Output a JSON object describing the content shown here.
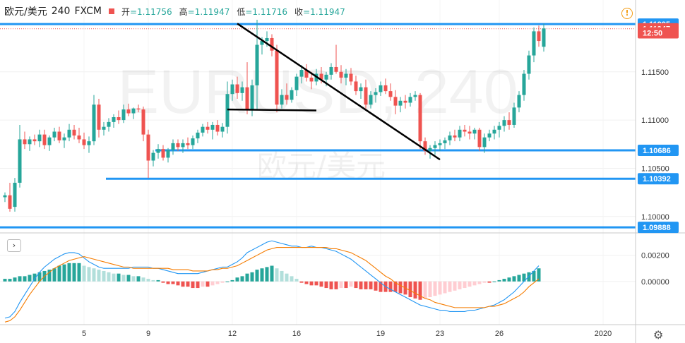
{
  "header": {
    "symbol": "欧元/美元",
    "interval": "240",
    "exchange": "FXCM",
    "open_label": "开",
    "open_value": "=1.11756",
    "high_label": "高",
    "high_value": "=1.11947",
    "low_label": "低",
    "low_value": "=1.11716",
    "close_label": "收",
    "close_value": "=1.11947"
  },
  "watermark": {
    "line1": "EURUSD, 240",
    "line2": "欧元/美元"
  },
  "icons": {
    "warning": "!",
    "collapse": "›",
    "settings": "⚙"
  },
  "colors": {
    "up": "#26a69a",
    "down": "#ef5350",
    "level": "#2196f3",
    "macd": "#2196f3",
    "signal": "#f57c00"
  },
  "chart_data": {
    "type": "candlestick",
    "price_axis": {
      "ylim": [
        1.0983,
        1.1204
      ],
      "ticks": [
        1.1,
        1.105,
        1.11,
        1.115
      ],
      "tick_labels": [
        "1.10000",
        "1.10500",
        "1.11000",
        "1.11500"
      ]
    },
    "x_axis": {
      "tick_labels": [
        "5",
        "9",
        "12",
        "16",
        "19",
        "23",
        "26",
        "2020"
      ]
    },
    "price_labels": [
      {
        "value": 1.11995,
        "text": "1.11995",
        "color": "#2196f3"
      },
      {
        "value": 1.11947,
        "text": "1.11947",
        "color": "#ef5350"
      },
      {
        "value": 1.11905,
        "text": "12:50",
        "color": "#ef5350"
      },
      {
        "value": 1.10686,
        "text": "1.10686",
        "color": "#2196f3"
      },
      {
        "value": 1.10392,
        "text": "1.10392",
        "color": "#2196f3"
      },
      {
        "value": 1.09888,
        "text": "1.09888",
        "color": "#2196f3"
      }
    ],
    "horizontal_lines": [
      {
        "value": 1.11995,
        "x_from": 0
      },
      {
        "value": 1.10686,
        "x_from": 31
      },
      {
        "value": 1.10392,
        "x_from": 21
      },
      {
        "value": 1.09888,
        "x_from": 0
      }
    ],
    "trend_lines": [
      {
        "from": [
          47,
          1.12
        ],
        "to": [
          88,
          1.1059
        ]
      },
      {
        "from": [
          45,
          1.1111
        ],
        "to": [
          63,
          1.111
        ]
      }
    ],
    "ohlc": [
      [
        1.102,
        1.1025,
        1.1015,
        1.1022
      ],
      [
        1.1022,
        1.1035,
        1.1005,
        1.1008
      ],
      [
        1.101,
        1.104,
        1.1005,
        1.1035
      ],
      [
        1.1035,
        1.1095,
        1.103,
        1.108
      ],
      [
        1.108,
        1.1088,
        1.107,
        1.1075
      ],
      [
        1.1075,
        1.1083,
        1.1068,
        1.108
      ],
      [
        1.108,
        1.1085,
        1.1074,
        1.1078
      ],
      [
        1.1078,
        1.109,
        1.1072,
        1.1085
      ],
      [
        1.1085,
        1.109,
        1.107,
        1.1074
      ],
      [
        1.1074,
        1.1084,
        1.1068,
        1.1082
      ],
      [
        1.1082,
        1.1092,
        1.1078,
        1.1088
      ],
      [
        1.1088,
        1.1093,
        1.1076,
        1.1079
      ],
      [
        1.1079,
        1.1086,
        1.1071,
        1.1082
      ],
      [
        1.1082,
        1.1096,
        1.1078,
        1.109
      ],
      [
        1.109,
        1.1095,
        1.108,
        1.1084
      ],
      [
        1.1084,
        1.1092,
        1.1076,
        1.108
      ],
      [
        1.108,
        1.1087,
        1.107,
        1.1074
      ],
      [
        1.1074,
        1.1083,
        1.1066,
        1.1078
      ],
      [
        1.1078,
        1.1126,
        1.1074,
        1.1116
      ],
      [
        1.1116,
        1.1122,
        1.1082,
        1.109
      ],
      [
        1.109,
        1.1098,
        1.1084,
        1.1093
      ],
      [
        1.1093,
        1.1102,
        1.1088,
        1.1098
      ],
      [
        1.1098,
        1.1106,
        1.1092,
        1.1103
      ],
      [
        1.1103,
        1.111,
        1.1096,
        1.11
      ],
      [
        1.11,
        1.1116,
        1.1097,
        1.1111
      ],
      [
        1.1111,
        1.1117,
        1.1104,
        1.1107
      ],
      [
        1.1107,
        1.1113,
        1.1101,
        1.1112
      ],
      [
        1.1112,
        1.1116,
        1.1108,
        1.1111
      ],
      [
        1.1111,
        1.1114,
        1.1078,
        1.1085
      ],
      [
        1.1085,
        1.109,
        1.104,
        1.1058
      ],
      [
        1.1058,
        1.1069,
        1.1052,
        1.1066
      ],
      [
        1.1066,
        1.1075,
        1.106,
        1.107
      ],
      [
        1.107,
        1.1074,
        1.1058,
        1.1061
      ],
      [
        1.1061,
        1.1071,
        1.1056,
        1.1069
      ],
      [
        1.1069,
        1.108,
        1.1064,
        1.1076
      ],
      [
        1.1076,
        1.108,
        1.1068,
        1.1072
      ],
      [
        1.1072,
        1.108,
        1.1066,
        1.1076
      ],
      [
        1.1076,
        1.1082,
        1.107,
        1.1074
      ],
      [
        1.1074,
        1.1084,
        1.107,
        1.1081
      ],
      [
        1.1081,
        1.109,
        1.1076,
        1.1087
      ],
      [
        1.1087,
        1.1096,
        1.1083,
        1.1093
      ],
      [
        1.1093,
        1.1098,
        1.1086,
        1.109
      ],
      [
        1.109,
        1.1098,
        1.108,
        1.1095
      ],
      [
        1.1095,
        1.11,
        1.1084,
        1.1088
      ],
      [
        1.1088,
        1.1097,
        1.1082,
        1.1093
      ],
      [
        1.1093,
        1.114,
        1.1086,
        1.1127
      ],
      [
        1.1127,
        1.1142,
        1.112,
        1.1137
      ],
      [
        1.1137,
        1.1145,
        1.1122,
        1.1128
      ],
      [
        1.1128,
        1.114,
        1.112,
        1.1134
      ],
      [
        1.1134,
        1.116,
        1.1106,
        1.111
      ],
      [
        1.111,
        1.1142,
        1.1104,
        1.1136
      ],
      [
        1.1136,
        1.1204,
        1.111,
        1.1178
      ],
      [
        1.1178,
        1.1186,
        1.1168,
        1.1182
      ],
      [
        1.1182,
        1.1192,
        1.1176,
        1.1185
      ],
      [
        1.1185,
        1.1189,
        1.1166,
        1.1172
      ],
      [
        1.1172,
        1.1178,
        1.1108,
        1.1116
      ],
      [
        1.1116,
        1.1132,
        1.1112,
        1.1126
      ],
      [
        1.1126,
        1.1138,
        1.1116,
        1.1121
      ],
      [
        1.1121,
        1.1134,
        1.1118,
        1.1131
      ],
      [
        1.1131,
        1.1148,
        1.1125,
        1.1145
      ],
      [
        1.1145,
        1.1157,
        1.1138,
        1.1152
      ],
      [
        1.1152,
        1.1158,
        1.114,
        1.1144
      ],
      [
        1.1144,
        1.115,
        1.1132,
        1.114
      ],
      [
        1.114,
        1.1153,
        1.1136,
        1.1148
      ],
      [
        1.1148,
        1.1155,
        1.1138,
        1.1142
      ],
      [
        1.1142,
        1.115,
        1.1135,
        1.1147
      ],
      [
        1.1147,
        1.1159,
        1.1142,
        1.1155
      ],
      [
        1.1155,
        1.1178,
        1.1148,
        1.115
      ],
      [
        1.115,
        1.1157,
        1.1138,
        1.1144
      ],
      [
        1.1144,
        1.1153,
        1.1136,
        1.1148
      ],
      [
        1.1148,
        1.1154,
        1.1136,
        1.114
      ],
      [
        1.114,
        1.1146,
        1.1126,
        1.113
      ],
      [
        1.113,
        1.1138,
        1.1122,
        1.1134
      ],
      [
        1.1134,
        1.1142,
        1.1112,
        1.1116
      ],
      [
        1.1116,
        1.113,
        1.1112,
        1.1126
      ],
      [
        1.1126,
        1.1133,
        1.1118,
        1.1129
      ],
      [
        1.1129,
        1.114,
        1.1125,
        1.1136
      ],
      [
        1.1136,
        1.1143,
        1.1127,
        1.113
      ],
      [
        1.113,
        1.1138,
        1.112,
        1.1124
      ],
      [
        1.1124,
        1.1131,
        1.1106,
        1.1115
      ],
      [
        1.1115,
        1.1124,
        1.1108,
        1.112
      ],
      [
        1.112,
        1.1126,
        1.1112,
        1.1118
      ],
      [
        1.1118,
        1.1128,
        1.1114,
        1.1124
      ],
      [
        1.1124,
        1.113,
        1.112,
        1.1126
      ],
      [
        1.1126,
        1.1128,
        1.107,
        1.1078
      ],
      [
        1.1078,
        1.1082,
        1.1064,
        1.1068
      ],
      [
        1.1068,
        1.1074,
        1.106,
        1.1071
      ],
      [
        1.1071,
        1.1078,
        1.1064,
        1.1074
      ],
      [
        1.1074,
        1.108,
        1.1068,
        1.1076
      ],
      [
        1.1076,
        1.1082,
        1.107,
        1.1079
      ],
      [
        1.1079,
        1.1088,
        1.1074,
        1.1084
      ],
      [
        1.1084,
        1.109,
        1.1078,
        1.1082
      ],
      [
        1.1082,
        1.1094,
        1.1078,
        1.109
      ],
      [
        1.109,
        1.1095,
        1.1083,
        1.1088
      ],
      [
        1.1088,
        1.1094,
        1.108,
        1.1086
      ],
      [
        1.1086,
        1.1092,
        1.108,
        1.109
      ],
      [
        1.109,
        1.1092,
        1.1068,
        1.1072
      ],
      [
        1.1072,
        1.1086,
        1.1066,
        1.1082
      ],
      [
        1.1082,
        1.109,
        1.1078,
        1.1086
      ],
      [
        1.1086,
        1.1094,
        1.108,
        1.109
      ],
      [
        1.109,
        1.1098,
        1.1082,
        1.1094
      ],
      [
        1.1094,
        1.1104,
        1.1088,
        1.11
      ],
      [
        1.11,
        1.1108,
        1.109,
        1.1095
      ],
      [
        1.1095,
        1.1118,
        1.1092,
        1.1113
      ],
      [
        1.1113,
        1.113,
        1.1108,
        1.1126
      ],
      [
        1.1126,
        1.1152,
        1.112,
        1.1148
      ],
      [
        1.1148,
        1.1172,
        1.1142,
        1.1167
      ],
      [
        1.1167,
        1.1196,
        1.116,
        1.1192
      ],
      [
        1.1192,
        1.1198,
        1.1176,
        1.1182
      ],
      [
        1.1176,
        1.12,
        1.1171,
        1.1195
      ]
    ],
    "macd": {
      "ylim": [
        -0.0033,
        0.0036
      ],
      "ticks": [
        0.0,
        0.002
      ],
      "tick_labels": [
        "0.00000",
        "0.00200"
      ],
      "histogram": [
        0.0002,
        0.0002,
        0.0003,
        0.0004,
        0.0004,
        0.0005,
        0.0006,
        0.0007,
        0.0008,
        0.0009,
        0.001,
        0.0012,
        0.0013,
        0.0014,
        0.0014,
        0.0014,
        0.0012,
        0.0011,
        0.001,
        0.0009,
        0.0008,
        0.0007,
        0.0006,
        0.0006,
        0.0005,
        0.0005,
        0.0004,
        0.0004,
        0.0003,
        0.0002,
        0.0001,
        0.0001,
        -0.0001,
        -0.0002,
        -0.0002,
        -0.0003,
        -0.0004,
        -0.0004,
        -0.0005,
        -0.0005,
        -0.0004,
        -0.0004,
        -0.0003,
        -0.0002,
        -0.0001,
        0.0,
        0.0001,
        0.0003,
        0.0004,
        0.0006,
        0.0007,
        0.0009,
        0.001,
        0.0011,
        0.0012,
        0.001,
        0.0008,
        0.0006,
        0.0004,
        0.0002,
        -0.0001,
        -0.0002,
        -0.0003,
        -0.0003,
        -0.0004,
        -0.0005,
        -0.0006,
        -0.0006,
        -0.0005,
        -0.0005,
        -0.0004,
        -0.0005,
        -0.0006,
        -0.0006,
        -0.0006,
        -0.0007,
        -0.0008,
        -0.0008,
        -0.0008,
        -0.0008,
        -0.0009,
        -0.001,
        -0.0012,
        -0.0013,
        -0.0014,
        -0.0013,
        -0.0012,
        -0.0011,
        -0.001,
        -0.0009,
        -0.0008,
        -0.0007,
        -0.0006,
        -0.0005,
        -0.0004,
        -0.0003,
        -0.0002,
        -0.0001,
        -0.0001,
        0.0,
        0.0001,
        0.0002,
        0.0003,
        0.0004,
        0.0005,
        0.0006,
        0.0007,
        0.0008,
        0.001
      ],
      "macd_line": [
        -0.0028,
        -0.0027,
        -0.0023,
        -0.0016,
        -0.001,
        -0.0004,
        0.0002,
        0.0007,
        0.0011,
        0.0014,
        0.0017,
        0.0019,
        0.0021,
        0.0022,
        0.0022,
        0.0021,
        0.0018,
        0.0015,
        0.0013,
        0.0011,
        0.001,
        0.001,
        0.001,
        0.001,
        0.001,
        0.001,
        0.0011,
        0.0011,
        0.0011,
        0.0011,
        0.001,
        0.001,
        0.0009,
        0.0008,
        0.0007,
        0.0006,
        0.0006,
        0.0006,
        0.0006,
        0.0006,
        0.0007,
        0.0008,
        0.0009,
        0.001,
        0.0011,
        0.0011,
        0.0013,
        0.0015,
        0.0018,
        0.0022,
        0.0024,
        0.0026,
        0.0028,
        0.003,
        0.0031,
        0.003,
        0.0029,
        0.0028,
        0.0027,
        0.0027,
        0.0026,
        0.0026,
        0.0027,
        0.0026,
        0.0026,
        0.0025,
        0.0024,
        0.0023,
        0.0021,
        0.0019,
        0.0017,
        0.0014,
        0.0011,
        0.0008,
        0.0005,
        0.0002,
        -0.0001,
        -0.0004,
        -0.0006,
        -0.0008,
        -0.001,
        -0.0012,
        -0.0014,
        -0.0016,
        -0.0018,
        -0.0019,
        -0.002,
        -0.0021,
        -0.0022,
        -0.0022,
        -0.0023,
        -0.0023,
        -0.0023,
        -0.0023,
        -0.0022,
        -0.0022,
        -0.0021,
        -0.002,
        -0.0019,
        -0.0018,
        -0.0016,
        -0.0014,
        -0.0011,
        -0.0008,
        -0.0004,
        0.0,
        0.0004,
        0.0008,
        0.0012
      ],
      "signal_line": [
        -0.0031,
        -0.003,
        -0.0027,
        -0.0022,
        -0.0016,
        -0.001,
        -0.0005,
        0.0,
        0.0004,
        0.0007,
        0.001,
        0.0012,
        0.0014,
        0.0016,
        0.0017,
        0.0018,
        0.0019,
        0.0018,
        0.0017,
        0.0016,
        0.0015,
        0.0014,
        0.0013,
        0.0012,
        0.0011,
        0.0011,
        0.001,
        0.001,
        0.001,
        0.001,
        0.001,
        0.001,
        0.001,
        0.001,
        0.0009,
        0.0009,
        0.0009,
        0.0009,
        0.0008,
        0.0008,
        0.0008,
        0.0008,
        0.0009,
        0.0009,
        0.001,
        0.001,
        0.0011,
        0.0012,
        0.0014,
        0.0016,
        0.0018,
        0.002,
        0.0022,
        0.0024,
        0.0025,
        0.0026,
        0.0026,
        0.0026,
        0.0026,
        0.0026,
        0.0026,
        0.0026,
        0.0026,
        0.0026,
        0.0026,
        0.0026,
        0.0025,
        0.0025,
        0.0024,
        0.0023,
        0.0022,
        0.002,
        0.0018,
        0.0016,
        0.0013,
        0.001,
        0.0007,
        0.0004,
        0.0002,
        -0.0001,
        -0.0003,
        -0.0005,
        -0.0007,
        -0.0009,
        -0.0011,
        -0.0013,
        -0.0014,
        -0.0016,
        -0.0017,
        -0.0018,
        -0.0019,
        -0.002,
        -0.002,
        -0.002,
        -0.002,
        -0.002,
        -0.002,
        -0.002,
        -0.0019,
        -0.0019,
        -0.0018,
        -0.0017,
        -0.0015,
        -0.0013,
        -0.0011,
        -0.0008,
        -0.0004,
        -0.0001,
        0.0002
      ]
    }
  }
}
